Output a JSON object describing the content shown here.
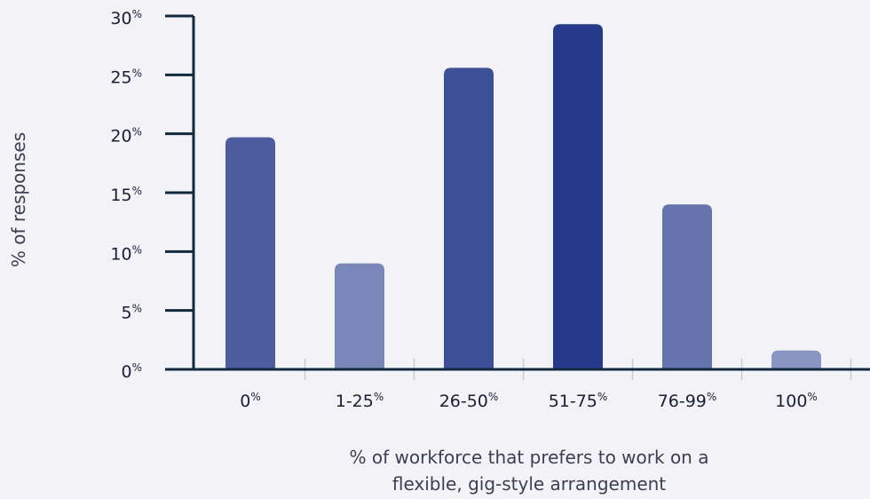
{
  "chart_data": {
    "type": "bar",
    "title": "",
    "xlabel_lines": [
      "% of workforce that prefers to work on a",
      "flexible, gig-style arrangement"
    ],
    "ylabel": "% of responses",
    "ylim": [
      0,
      30
    ],
    "y_ticks": [
      0,
      5,
      10,
      15,
      20,
      25,
      30
    ],
    "tick_unit": "%",
    "categories": [
      {
        "base": "0",
        "unit": "%"
      },
      {
        "base": "1-25",
        "unit": "%"
      },
      {
        "base": "26-50",
        "unit": "%"
      },
      {
        "base": "51-75",
        "unit": "%"
      },
      {
        "base": "76-99",
        "unit": "%"
      },
      {
        "base": "100",
        "unit": "%"
      }
    ],
    "values": [
      19.7,
      9.0,
      25.6,
      29.3,
      14.0,
      1.6
    ],
    "colors": [
      "#4c5c9e",
      "#7b87b8",
      "#3c4f97",
      "#253a8a",
      "#6573ac",
      "#8a96c1"
    ],
    "grid": false,
    "legend": "none"
  }
}
